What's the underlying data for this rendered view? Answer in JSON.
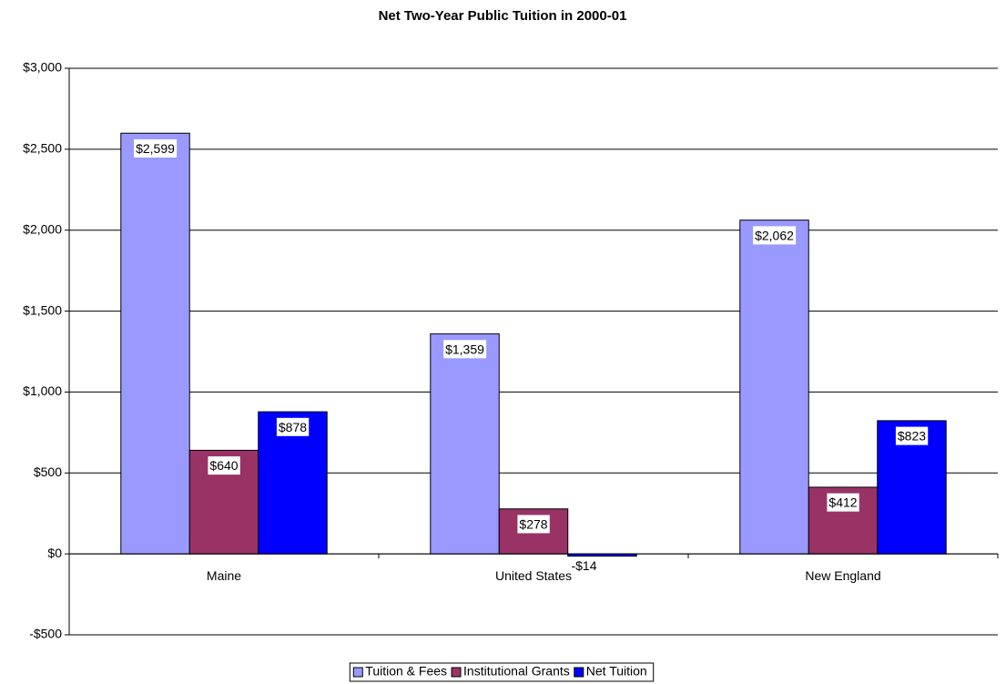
{
  "chart_data": {
    "type": "bar",
    "title": "Net Two-Year Public Tuition in 2000-01",
    "categories": [
      "Maine",
      "United States",
      "New England"
    ],
    "series": [
      {
        "name": "Tuition & Fees",
        "color": "#9999ff",
        "values": [
          2599,
          1359,
          2062
        ],
        "value_labels": [
          "$2,599",
          "$1,359",
          "$2,062"
        ]
      },
      {
        "name": "Institutional Grants",
        "color": "#993366",
        "values": [
          640,
          278,
          412
        ],
        "value_labels": [
          "$640",
          "$278",
          "$412"
        ]
      },
      {
        "name": "Net Tuition",
        "color": "#0000ff",
        "values": [
          878,
          -14,
          823
        ],
        "value_labels": [
          "$878",
          "-$14",
          "$823"
        ]
      }
    ],
    "ylim": [
      -500,
      3000
    ],
    "yticks": [
      {
        "value": -500,
        "label": "-$500"
      },
      {
        "value": 0,
        "label": "$0"
      },
      {
        "value": 500,
        "label": "$500"
      },
      {
        "value": 1000,
        "label": "$1,000"
      },
      {
        "value": 1500,
        "label": "$1,500"
      },
      {
        "value": 2000,
        "label": "$2,000"
      },
      {
        "value": 2500,
        "label": "$2,500"
      },
      {
        "value": 3000,
        "label": "$3,000"
      }
    ],
    "grid": true,
    "legend": "bottom"
  }
}
